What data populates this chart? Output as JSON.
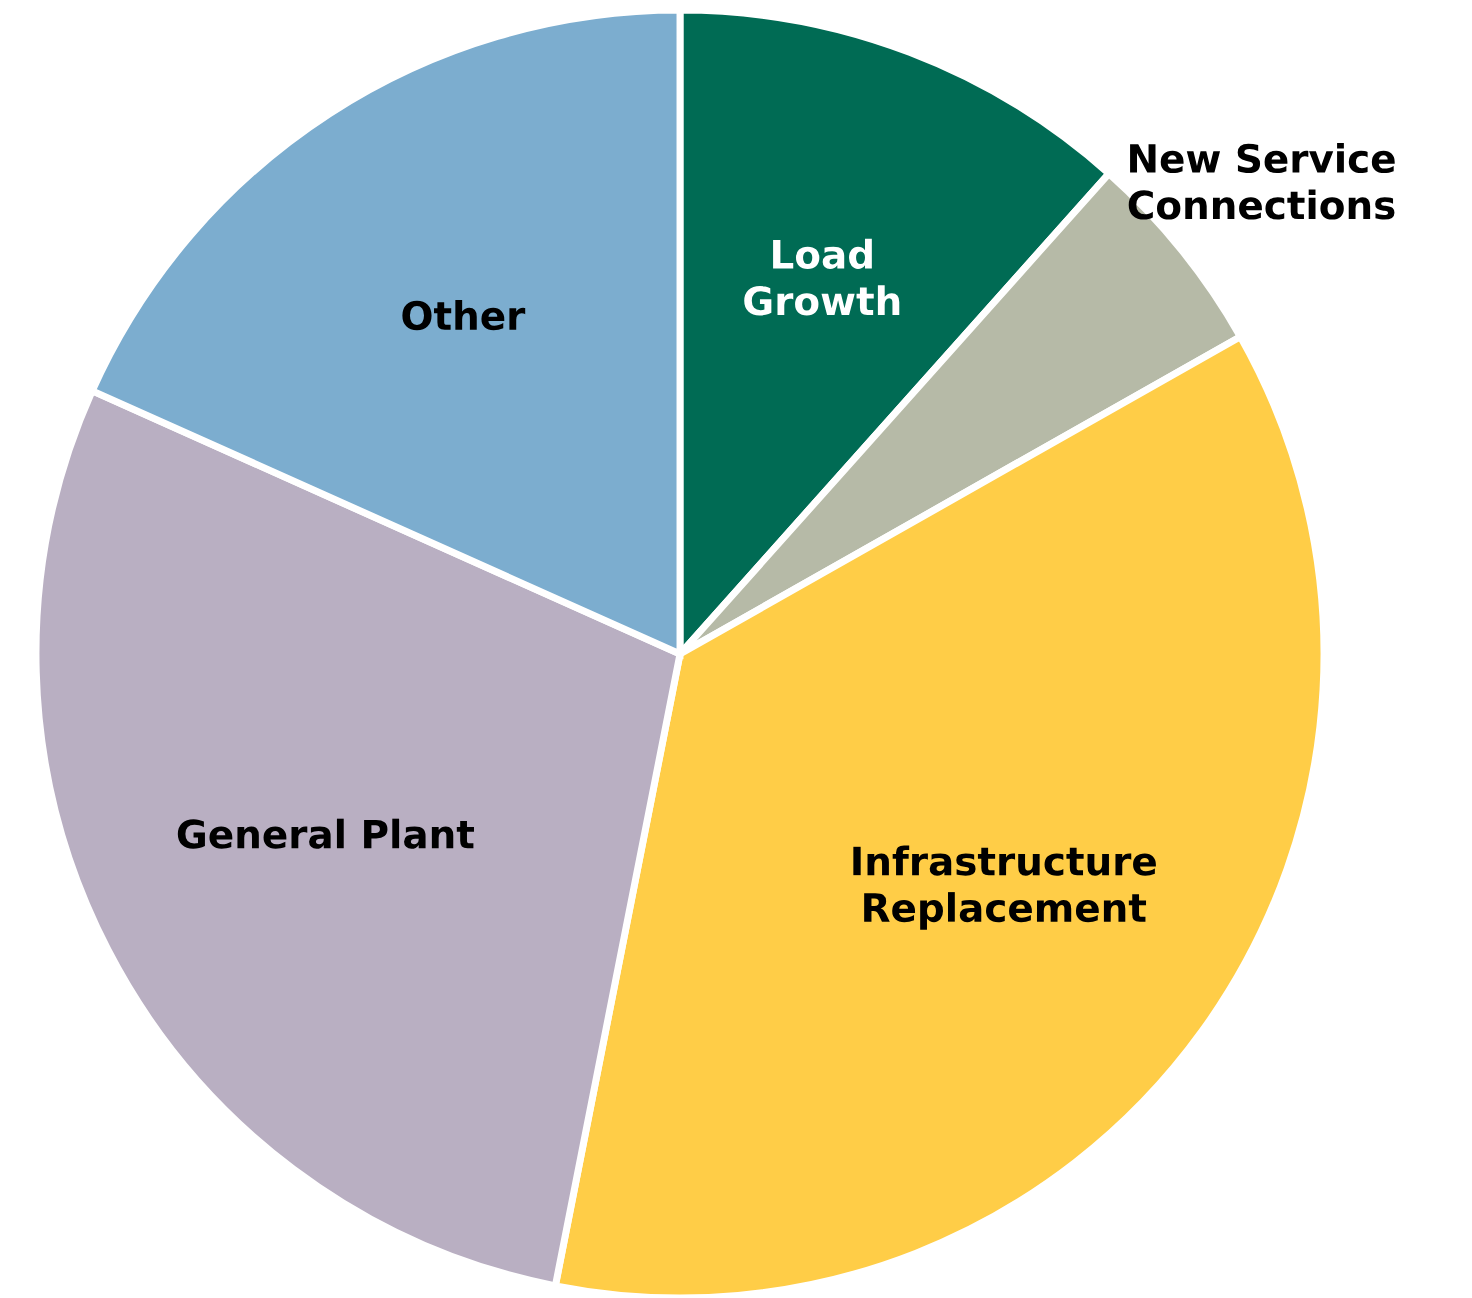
{
  "chart_data": {
    "type": "pie",
    "categories": [
      "Load\nGrowth",
      "New Service\nConnections",
      "Infrastructure\nReplacement",
      "General Plant",
      "Other"
    ],
    "values": [
      11.6,
      5.2,
      36.3,
      28.6,
      18.3
    ],
    "colors": [
      "#006b54",
      "#b6baa7",
      "#ffcd47",
      "#b9afc2",
      "#7cadcf"
    ],
    "legend": false
  }
}
